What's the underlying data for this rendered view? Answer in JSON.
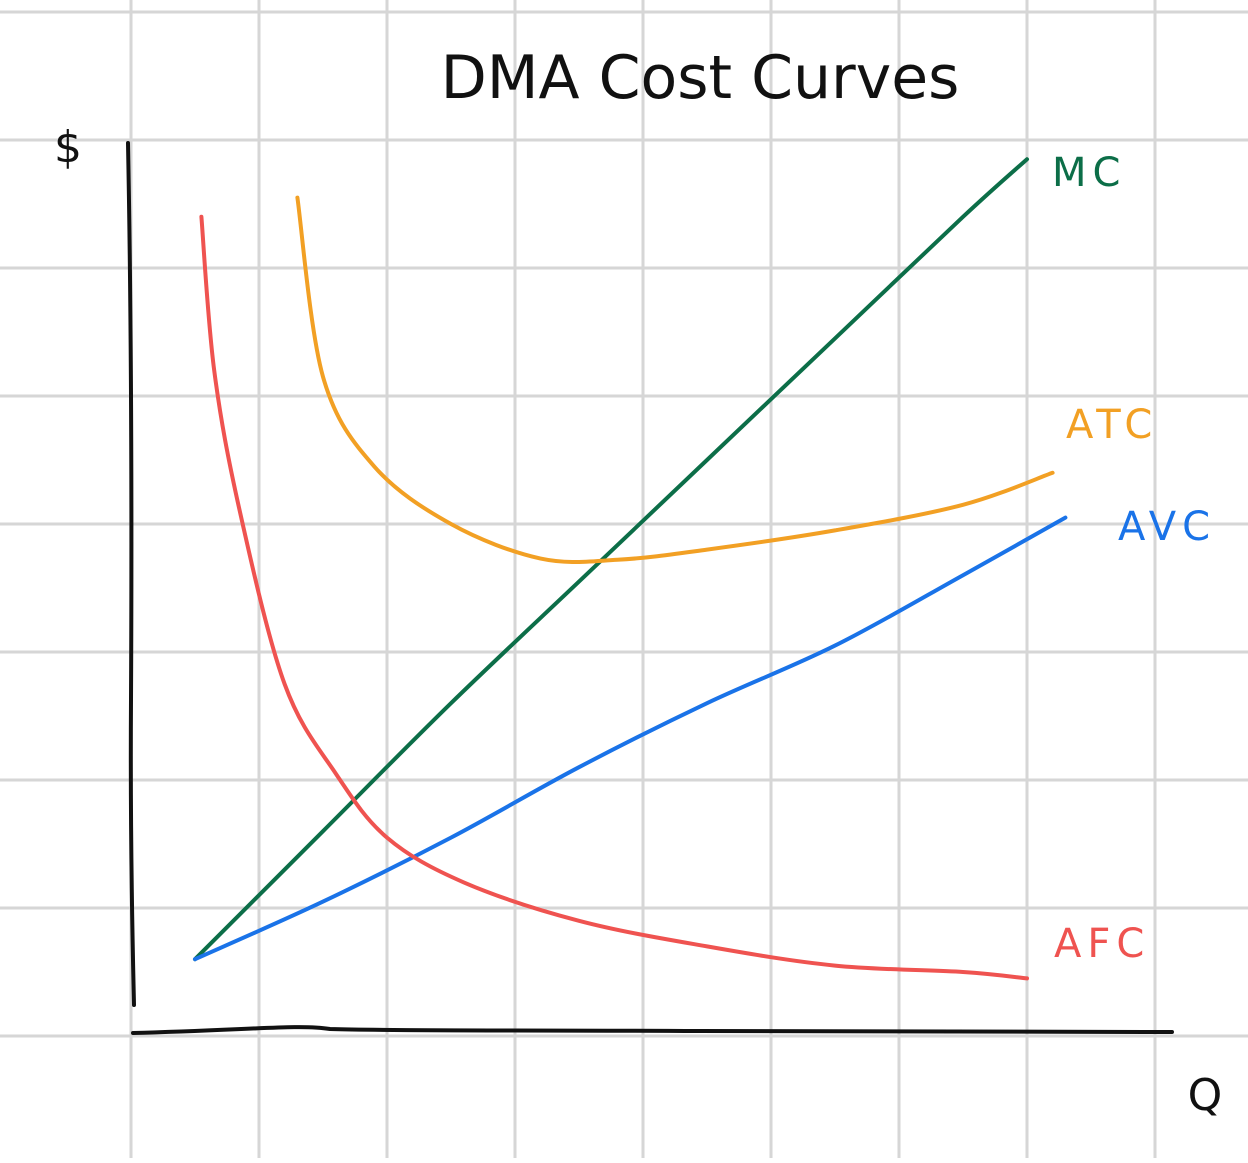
{
  "chart_data": {
    "type": "line",
    "title": "DMA Cost Curves",
    "ylabel": "$",
    "xlabel": "Q",
    "xlim": [
      0,
      8
    ],
    "ylim": [
      0,
      7
    ],
    "grid": true,
    "series": [
      {
        "name": "MC",
        "color": "#0c6e48",
        "points": [
          [
            0.5,
            0.6
          ],
          [
            1.5,
            1.6
          ],
          [
            2.5,
            2.6
          ],
          [
            3.5,
            3.55
          ],
          [
            4.5,
            4.5
          ],
          [
            5.5,
            5.45
          ],
          [
            6.5,
            6.4
          ],
          [
            7.0,
            6.85
          ]
        ]
      },
      {
        "name": "ATC",
        "color": "#f2a024",
        "points": [
          [
            1.3,
            6.55
          ],
          [
            1.5,
            5.15
          ],
          [
            1.9,
            4.45
          ],
          [
            2.5,
            4.0
          ],
          [
            3.2,
            3.73
          ],
          [
            3.8,
            3.72
          ],
          [
            4.5,
            3.8
          ],
          [
            5.5,
            3.95
          ],
          [
            6.5,
            4.15
          ],
          [
            7.2,
            4.4
          ]
        ]
      },
      {
        "name": "AVC",
        "color": "#1a73e8",
        "points": [
          [
            0.5,
            0.6
          ],
          [
            1.5,
            1.05
          ],
          [
            2.5,
            1.55
          ],
          [
            3.5,
            2.1
          ],
          [
            4.5,
            2.6
          ],
          [
            5.5,
            3.05
          ],
          [
            6.5,
            3.6
          ],
          [
            7.3,
            4.05
          ]
        ]
      },
      {
        "name": "AFC",
        "color": "#ef5350",
        "points": [
          [
            0.55,
            6.4
          ],
          [
            0.65,
            5.2
          ],
          [
            0.85,
            4.1
          ],
          [
            1.2,
            2.75
          ],
          [
            1.6,
            2.05
          ],
          [
            2.0,
            1.55
          ],
          [
            2.6,
            1.2
          ],
          [
            3.5,
            0.9
          ],
          [
            4.5,
            0.7
          ],
          [
            5.5,
            0.55
          ],
          [
            6.5,
            0.5
          ],
          [
            7.0,
            0.45
          ]
        ]
      }
    ]
  }
}
